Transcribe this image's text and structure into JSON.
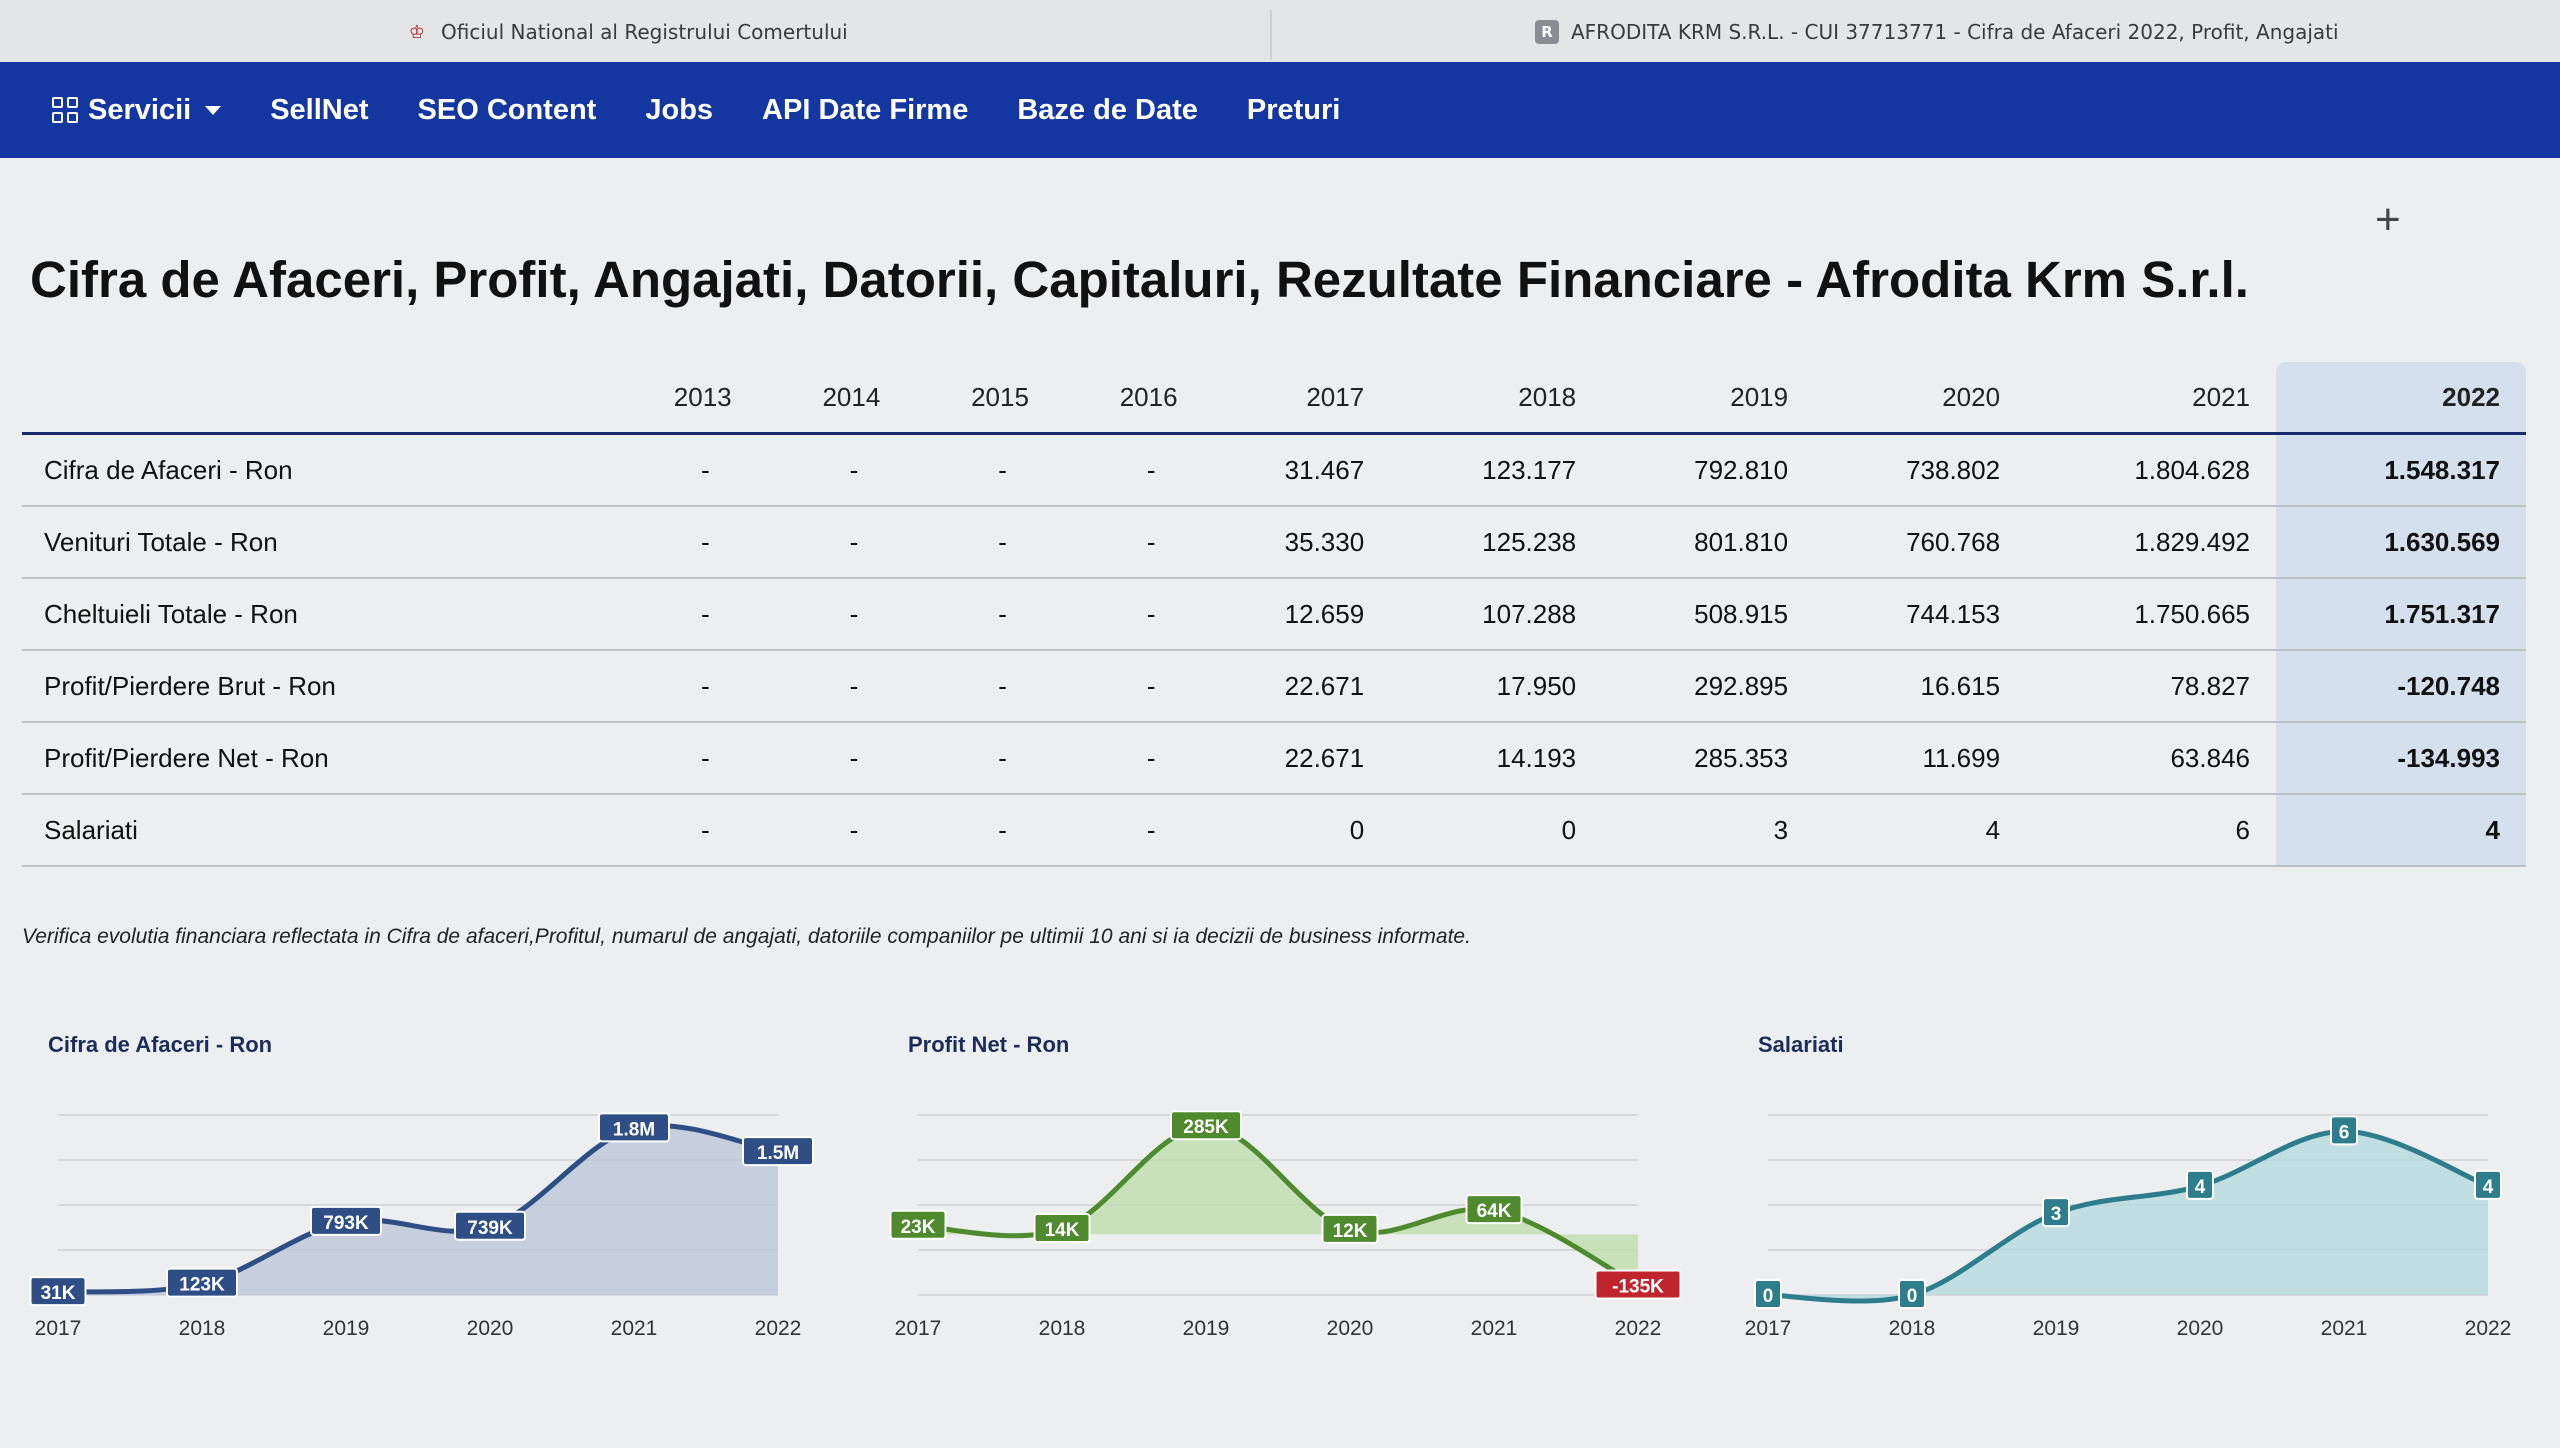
{
  "browser": {
    "tabs": [
      {
        "label": "Oficiul National al Registrului Comertului",
        "icon": "onrc-logo-icon"
      },
      {
        "label": "AFRODITA KRM S.R.L. - CUI 37713771 - Cifra de Afaceri 2022, Profit, Angajati",
        "icon": "r-favicon-icon",
        "badge": "R"
      }
    ]
  },
  "nav": {
    "items": [
      {
        "label": "Servicii",
        "icon": "grid-icon",
        "dropdown": true
      },
      {
        "label": "SellNet"
      },
      {
        "label": "SEO Content"
      },
      {
        "label": "Jobs"
      },
      {
        "label": "API Date Firme"
      },
      {
        "label": "Baze de Date"
      },
      {
        "label": "Preturi"
      }
    ],
    "color": "#1436a0"
  },
  "page": {
    "plus_icon": "+",
    "title": "Cifra de Afaceri, Profit, Angajati, Datorii, Capitaluri, Rezultate Financiare - Afrodita Krm S.r.l.",
    "note": "Verifica evolutia financiara reflectata in Cifra de afaceri,Profitul, numarul de angajati, datoriile companiilor pe ultimii 10 ani si ia decizii de business informate."
  },
  "table": {
    "years": [
      "2013",
      "2014",
      "2015",
      "2016",
      "2017",
      "2018",
      "2019",
      "2020",
      "2021",
      "2022"
    ],
    "highlight_color": "#d4e0ee",
    "rows": [
      {
        "label": "Cifra de Afaceri - Ron",
        "values": [
          "-",
          "-",
          "-",
          "-",
          "31.467",
          "123.177",
          "792.810",
          "738.802",
          "1.804.628",
          "1.548.317"
        ]
      },
      {
        "label": "Venituri Totale - Ron",
        "values": [
          "-",
          "-",
          "-",
          "-",
          "35.330",
          "125.238",
          "801.810",
          "760.768",
          "1.829.492",
          "1.630.569"
        ]
      },
      {
        "label": "Cheltuieli Totale - Ron",
        "values": [
          "-",
          "-",
          "-",
          "-",
          "12.659",
          "107.288",
          "508.915",
          "744.153",
          "1.750.665",
          "1.751.317"
        ]
      },
      {
        "label": "Profit/Pierdere Brut - Ron",
        "values": [
          "-",
          "-",
          "-",
          "-",
          "22.671",
          "17.950",
          "292.895",
          "16.615",
          "78.827",
          "-120.748"
        ]
      },
      {
        "label": "Profit/Pierdere Net - Ron",
        "values": [
          "-",
          "-",
          "-",
          "-",
          "22.671",
          "14.193",
          "285.353",
          "11.699",
          "63.846",
          "-134.993"
        ]
      },
      {
        "label": "Salariati",
        "values": [
          "-",
          "-",
          "-",
          "-",
          "0",
          "0",
          "3",
          "4",
          "6",
          "4"
        ]
      }
    ]
  },
  "chart_data": [
    {
      "type": "area",
      "title": "Cifra de Afaceri - Ron",
      "x": [
        "2017",
        "2018",
        "2019",
        "2020",
        "2021",
        "2022"
      ],
      "values": [
        31467,
        123177,
        792810,
        738802,
        1804628,
        1548317
      ],
      "labels": [
        "31K",
        "123K",
        "793K",
        "739K",
        "1.8M",
        "1.5M"
      ],
      "ylim": [
        0,
        1950000
      ],
      "color": "#2f4e86",
      "fill": "#b8c4d8",
      "negative_color": "#c0242c",
      "grid": true
    },
    {
      "type": "area",
      "title": "Profit Net - Ron",
      "x": [
        "2017",
        "2018",
        "2019",
        "2020",
        "2021",
        "2022"
      ],
      "values": [
        22671,
        14193,
        285353,
        11699,
        63846,
        -134993
      ],
      "labels": [
        "23K",
        "14K",
        "285K",
        "12K",
        "64K",
        "-135K"
      ],
      "ylim": [
        -160000,
        315000
      ],
      "color": "#4f8a2e",
      "fill": "#bcdca8",
      "negative_color": "#c0242c",
      "grid": true
    },
    {
      "type": "area",
      "title": "Salariati",
      "x": [
        "2017",
        "2018",
        "2019",
        "2020",
        "2021",
        "2022"
      ],
      "values": [
        0,
        0,
        3,
        4,
        6,
        4
      ],
      "labels": [
        "0",
        "0",
        "3",
        "4",
        "6",
        "4"
      ],
      "ylim": [
        0,
        6.6
      ],
      "color": "#2e7d8c",
      "fill": "#b3d9dd",
      "negative_color": "#c0242c",
      "grid": true
    }
  ]
}
